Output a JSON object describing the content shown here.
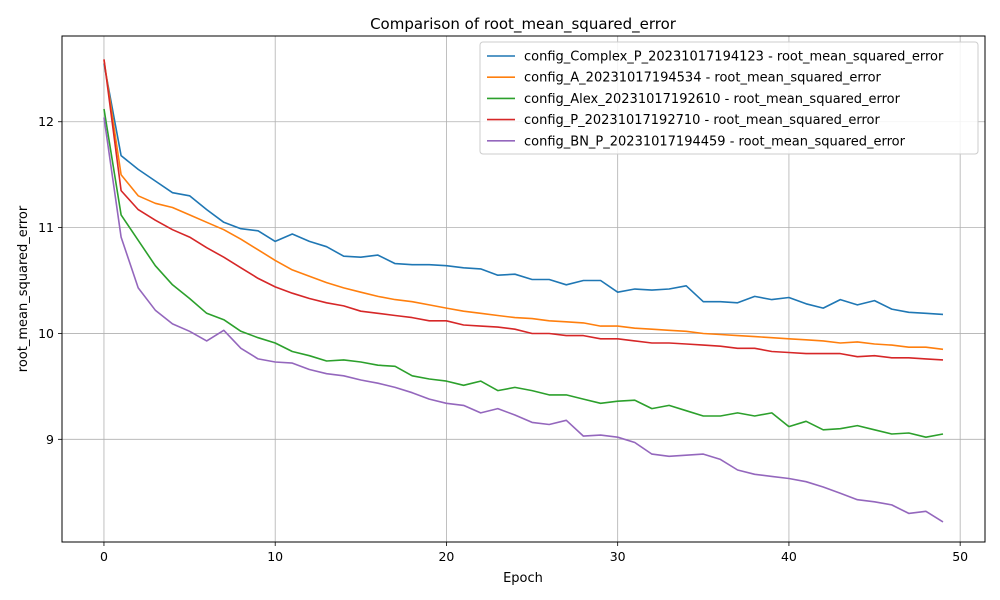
{
  "chart_data": {
    "type": "line",
    "title": "Comparison of root_mean_squared_error",
    "xlabel": "Epoch",
    "ylabel": "root_mean_squared_error",
    "xlim": [
      -2.45,
      51.45
    ],
    "ylim": [
      8.03,
      12.81
    ],
    "xticks": [
      0,
      10,
      20,
      30,
      40,
      50
    ],
    "yticks": [
      9,
      10,
      11,
      12
    ],
    "grid": true,
    "legend_position": "top-right",
    "x": [
      0,
      1,
      2,
      3,
      4,
      5,
      6,
      7,
      8,
      9,
      10,
      11,
      12,
      13,
      14,
      15,
      16,
      17,
      18,
      19,
      20,
      21,
      22,
      23,
      24,
      25,
      26,
      27,
      28,
      29,
      30,
      31,
      32,
      33,
      34,
      35,
      36,
      37,
      38,
      39,
      40,
      41,
      42,
      43,
      44,
      45,
      46,
      47,
      48,
      49
    ],
    "series": [
      {
        "name": "config_Complex_P_20231017194123 - root_mean_squared_error",
        "color": "#1f77b4",
        "values": [
          12.55,
          11.68,
          11.55,
          11.44,
          11.33,
          11.3,
          11.17,
          11.05,
          10.99,
          10.97,
          10.87,
          10.94,
          10.87,
          10.82,
          10.73,
          10.72,
          10.74,
          10.66,
          10.65,
          10.65,
          10.64,
          10.62,
          10.61,
          10.55,
          10.56,
          10.51,
          10.51,
          10.46,
          10.5,
          10.5,
          10.39,
          10.42,
          10.41,
          10.42,
          10.45,
          10.3,
          10.3,
          10.29,
          10.35,
          10.32,
          10.34,
          10.28,
          10.24,
          10.32,
          10.27,
          10.31,
          10.23,
          10.2,
          10.19,
          10.18
        ]
      },
      {
        "name": "config_A_20231017194534 - root_mean_squared_error",
        "color": "#ff7f0e",
        "values": [
          12.58,
          11.5,
          11.3,
          11.23,
          11.19,
          11.12,
          11.05,
          10.98,
          10.89,
          10.79,
          10.69,
          10.6,
          10.54,
          10.48,
          10.43,
          10.39,
          10.35,
          10.32,
          10.3,
          10.27,
          10.24,
          10.21,
          10.19,
          10.17,
          10.15,
          10.14,
          10.12,
          10.11,
          10.1,
          10.07,
          10.07,
          10.05,
          10.04,
          10.03,
          10.02,
          10.0,
          9.99,
          9.98,
          9.97,
          9.96,
          9.95,
          9.94,
          9.93,
          9.91,
          9.92,
          9.9,
          9.89,
          9.87,
          9.87,
          9.85
        ]
      },
      {
        "name": "config_Alex_20231017192610 - root_mean_squared_error",
        "color": "#2ca02c",
        "values": [
          12.12,
          11.12,
          10.88,
          10.64,
          10.46,
          10.33,
          10.19,
          10.13,
          10.02,
          9.96,
          9.91,
          9.83,
          9.79,
          9.74,
          9.75,
          9.73,
          9.7,
          9.69,
          9.6,
          9.57,
          9.55,
          9.51,
          9.55,
          9.46,
          9.49,
          9.46,
          9.42,
          9.42,
          9.38,
          9.34,
          9.36,
          9.37,
          9.29,
          9.32,
          9.27,
          9.22,
          9.22,
          9.25,
          9.22,
          9.25,
          9.12,
          9.17,
          9.09,
          9.1,
          9.13,
          9.09,
          9.05,
          9.06,
          9.02,
          9.05
        ]
      },
      {
        "name": "config_P_20231017192710 - root_mean_squared_error",
        "color": "#d62728",
        "values": [
          12.59,
          11.35,
          11.17,
          11.07,
          10.98,
          10.91,
          10.81,
          10.72,
          10.62,
          10.52,
          10.44,
          10.38,
          10.33,
          10.29,
          10.26,
          10.21,
          10.19,
          10.17,
          10.15,
          10.12,
          10.12,
          10.08,
          10.07,
          10.06,
          10.04,
          10.0,
          10.0,
          9.98,
          9.98,
          9.95,
          9.95,
          9.93,
          9.91,
          9.91,
          9.9,
          9.89,
          9.88,
          9.86,
          9.86,
          9.83,
          9.82,
          9.81,
          9.81,
          9.81,
          9.78,
          9.79,
          9.77,
          9.77,
          9.76,
          9.75
        ]
      },
      {
        "name": "config_BN_P_20231017194459 - root_mean_squared_error",
        "color": "#9467bd",
        "values": [
          12.04,
          10.91,
          10.43,
          10.22,
          10.09,
          10.02,
          9.93,
          10.03,
          9.86,
          9.76,
          9.73,
          9.72,
          9.66,
          9.62,
          9.6,
          9.56,
          9.53,
          9.49,
          9.44,
          9.38,
          9.34,
          9.32,
          9.25,
          9.29,
          9.23,
          9.16,
          9.14,
          9.18,
          9.03,
          9.04,
          9.02,
          8.97,
          8.86,
          8.84,
          8.85,
          8.86,
          8.81,
          8.71,
          8.67,
          8.65,
          8.63,
          8.6,
          8.55,
          8.49,
          8.43,
          8.41,
          8.38,
          8.3,
          8.32,
          8.22
        ]
      }
    ]
  }
}
